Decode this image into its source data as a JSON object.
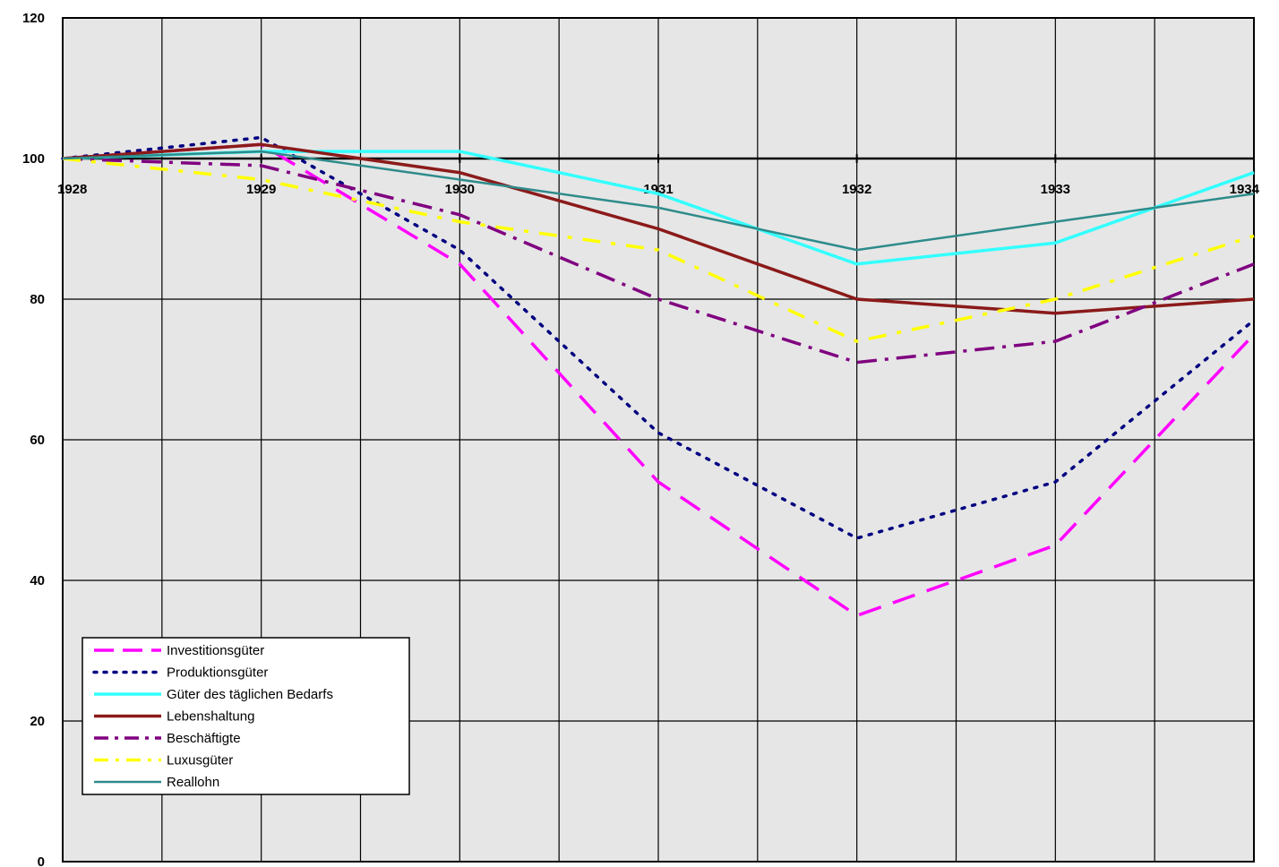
{
  "chart_data": {
    "type": "line",
    "title": "",
    "xlabel": "",
    "ylabel": "",
    "x": [
      1928,
      1929,
      1930,
      1931,
      1932,
      1933,
      1934
    ],
    "x_tick_labels": [
      "1928",
      "1929",
      "1930",
      "1931",
      "1932",
      "1933",
      "1934"
    ],
    "y_tick_labels": [
      "0",
      "20",
      "40",
      "60",
      "80",
      "100",
      "120"
    ],
    "ylim": [
      0,
      120
    ],
    "xlim": [
      1928,
      1934
    ],
    "grid": true,
    "background": "#e6e6e6",
    "legend_position": "bottom-left",
    "series": [
      {
        "name": "Investitionsgüter",
        "color": "#ff00ff",
        "style": "long-dash",
        "values": [
          100,
          102,
          85,
          54,
          35,
          45,
          75
        ]
      },
      {
        "name": "Produktionsgüter",
        "color": "#000080",
        "style": "dotted",
        "values": [
          100,
          103,
          87,
          61,
          46,
          54,
          77
        ]
      },
      {
        "name": "Güter des täglichen Bedarfs",
        "color": "#33ffff",
        "style": "solid-thick",
        "values": [
          100,
          101,
          101,
          95,
          85,
          88,
          98
        ]
      },
      {
        "name": "Lebenshaltung",
        "color": "#8b1a1a",
        "style": "solid",
        "values": [
          100,
          102,
          98,
          90,
          80,
          78,
          80
        ]
      },
      {
        "name": "Beschäftigte",
        "color": "#800080",
        "style": "dash-dot",
        "values": [
          100,
          99,
          92,
          80,
          71,
          74,
          85
        ]
      },
      {
        "name": "Luxusgüter",
        "color": "#ffff00",
        "style": "dash-dot-yellow",
        "values": [
          100,
          97,
          91,
          87,
          74,
          80,
          89
        ]
      },
      {
        "name": "Reallohn",
        "color": "#2e8b8b",
        "style": "solid-hatched",
        "values": [
          100,
          101,
          97,
          93,
          87,
          91,
          95
        ]
      }
    ]
  }
}
